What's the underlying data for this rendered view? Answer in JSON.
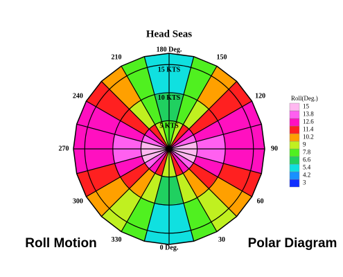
{
  "chart_data": {
    "type": "polar-contour",
    "title": "Head Seas",
    "corner_left": "Roll Motion",
    "corner_right": "Polar Diagram",
    "rlim": [
      0,
      17
    ],
    "rticks": [
      {
        "value": 5,
        "label": "5 KTS"
      },
      {
        "value": 10,
        "label": "10 KTS"
      },
      {
        "value": 15,
        "label": "15 KTS"
      }
    ],
    "sector_step": 15,
    "angle_labels": [
      {
        "value": 0,
        "label": "0 Deg."
      },
      30,
      60,
      90,
      120,
      150,
      {
        "value": 180,
        "label": "180 Deg."
      },
      210,
      240,
      270,
      300,
      330
    ],
    "rings": [
      [
        9,
        11.4,
        12.6,
        13.8,
        15,
        15,
        15,
        13.8,
        12.6,
        11.4,
        9,
        7.8,
        7.8,
        9,
        11.4,
        12.6,
        13.8,
        15,
        15,
        15,
        13.8,
        12.6,
        11.4,
        9
      ],
      [
        6.6,
        9,
        10.2,
        11.4,
        12.6,
        13.8,
        13.8,
        12.6,
        11.4,
        9,
        7.8,
        6.6,
        6.6,
        7.8,
        9,
        11.4,
        12.6,
        13.8,
        13.8,
        12.6,
        11.4,
        10.2,
        9,
        6.6
      ],
      [
        5.4,
        7.8,
        9,
        10.2,
        11.4,
        12.6,
        12.6,
        12.6,
        11.4,
        10.2,
        7.8,
        5.4,
        5.4,
        7.8,
        10.2,
        11.4,
        12.6,
        12.6,
        12.6,
        11.4,
        10.2,
        9,
        7.8,
        5.4
      ]
    ],
    "legend": {
      "title": "Roll(Deg.)",
      "levels": [
        3,
        4.2,
        5.4,
        6.6,
        7.8,
        9,
        10.2,
        11.4,
        12.6,
        13.8,
        15
      ],
      "colors": [
        "#1030ff",
        "#1890ff",
        "#10e0e0",
        "#20d060",
        "#50f020",
        "#c0f020",
        "#ffa000",
        "#ff2020",
        "#ff10c0",
        "#ff60f0",
        "#ffb8f0"
      ]
    }
  }
}
